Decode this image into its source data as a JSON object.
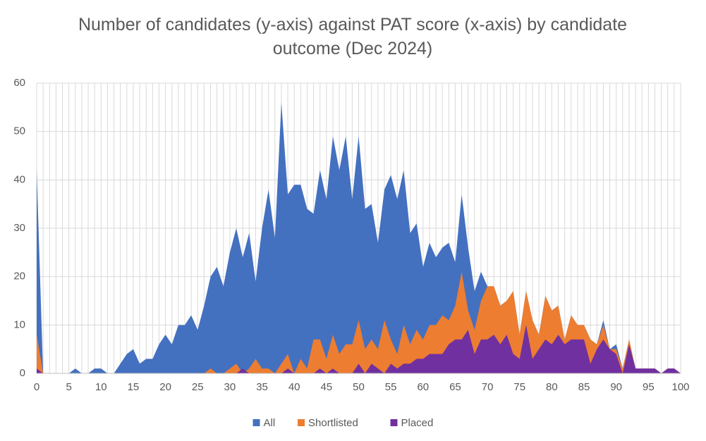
{
  "chart_data": {
    "type": "area",
    "title": "Number of candidates (y-axis) against PAT score (x-axis) by candidate outcome (Dec 2024)",
    "x": [
      0,
      1,
      2,
      3,
      4,
      5,
      6,
      7,
      8,
      9,
      10,
      11,
      12,
      13,
      14,
      15,
      16,
      17,
      18,
      19,
      20,
      21,
      22,
      23,
      24,
      25,
      26,
      27,
      28,
      29,
      30,
      31,
      32,
      33,
      34,
      35,
      36,
      37,
      38,
      39,
      40,
      41,
      42,
      43,
      44,
      45,
      46,
      47,
      48,
      49,
      50,
      51,
      52,
      53,
      54,
      55,
      56,
      57,
      58,
      59,
      60,
      61,
      62,
      63,
      64,
      65,
      66,
      67,
      68,
      69,
      70,
      71,
      72,
      73,
      74,
      75,
      76,
      77,
      78,
      79,
      80,
      81,
      82,
      83,
      84,
      85,
      86,
      87,
      88,
      89,
      90,
      91,
      92,
      93,
      94,
      95,
      96,
      97,
      98,
      99,
      100
    ],
    "xlim": [
      0,
      100
    ],
    "xticks": [
      0,
      5,
      10,
      15,
      20,
      25,
      30,
      35,
      40,
      45,
      50,
      55,
      60,
      65,
      70,
      75,
      80,
      85,
      90,
      95,
      100
    ],
    "ylim": [
      0,
      60
    ],
    "yticks": [
      0,
      10,
      20,
      30,
      40,
      50,
      60
    ],
    "grid": true,
    "legend": "bottom",
    "series": [
      {
        "name": "All",
        "color": "#4470c0",
        "values": [
          42,
          0,
          0,
          0,
          0,
          0,
          1,
          0,
          0,
          1,
          1,
          0,
          0,
          2,
          4,
          5,
          2,
          3,
          3,
          6,
          8,
          6,
          10,
          10,
          12,
          9,
          14,
          20,
          22,
          18,
          25,
          30,
          24,
          29,
          19,
          30,
          38,
          28,
          56,
          37,
          39,
          39,
          34,
          33,
          42,
          36,
          49,
          42,
          49,
          36,
          49,
          34,
          35,
          27,
          38,
          41,
          36,
          42,
          29,
          31,
          22,
          27,
          24,
          26,
          27,
          23,
          37,
          26,
          17,
          21,
          18,
          18,
          14,
          15,
          17,
          8,
          17,
          11,
          8,
          16,
          13,
          14,
          7,
          12,
          10,
          10,
          7,
          6,
          11,
          5,
          6,
          1,
          7,
          1,
          1,
          1,
          1,
          0,
          1,
          1,
          0
        ]
      },
      {
        "name": "Shortlisted",
        "color": "#ed7d31",
        "values": [
          8,
          0,
          0,
          0,
          0,
          0,
          0,
          0,
          0,
          0,
          0,
          0,
          0,
          0,
          0,
          0,
          0,
          0,
          0,
          0,
          0,
          0,
          0,
          0,
          0,
          0,
          0,
          1,
          0,
          0,
          1,
          2,
          0,
          1,
          3,
          1,
          1,
          0,
          2,
          4,
          0,
          3,
          1,
          7,
          7,
          3,
          8,
          4,
          6,
          6,
          11,
          5,
          7,
          5,
          11,
          7,
          4,
          10,
          6,
          9,
          7,
          10,
          10,
          12,
          11,
          14,
          21,
          13,
          9,
          15,
          18,
          18,
          14,
          15,
          17,
          8,
          17,
          11,
          8,
          16,
          13,
          14,
          7,
          12,
          10,
          10,
          7,
          6,
          10,
          5,
          5,
          1,
          7,
          1,
          1,
          1,
          1,
          0,
          1,
          1,
          0
        ]
      },
      {
        "name": "Placed",
        "color": "#7030a0",
        "values": [
          1,
          0,
          0,
          0,
          0,
          0,
          0,
          0,
          0,
          0,
          0,
          0,
          0,
          0,
          0,
          0,
          0,
          0,
          0,
          0,
          0,
          0,
          0,
          0,
          0,
          0,
          0,
          0,
          0,
          0,
          0,
          0,
          1,
          0,
          0,
          0,
          0,
          0,
          0,
          1,
          0,
          0,
          0,
          0,
          1,
          0,
          1,
          0,
          0,
          0,
          2,
          0,
          2,
          1,
          0,
          2,
          1,
          2,
          2,
          3,
          3,
          4,
          4,
          4,
          6,
          7,
          7,
          9,
          4,
          7,
          7,
          8,
          6,
          8,
          4,
          3,
          10,
          3,
          5,
          7,
          6,
          8,
          6,
          7,
          7,
          7,
          2,
          5,
          7,
          5,
          4,
          0,
          6,
          1,
          1,
          1,
          1,
          0,
          1,
          1,
          0
        ]
      }
    ]
  }
}
